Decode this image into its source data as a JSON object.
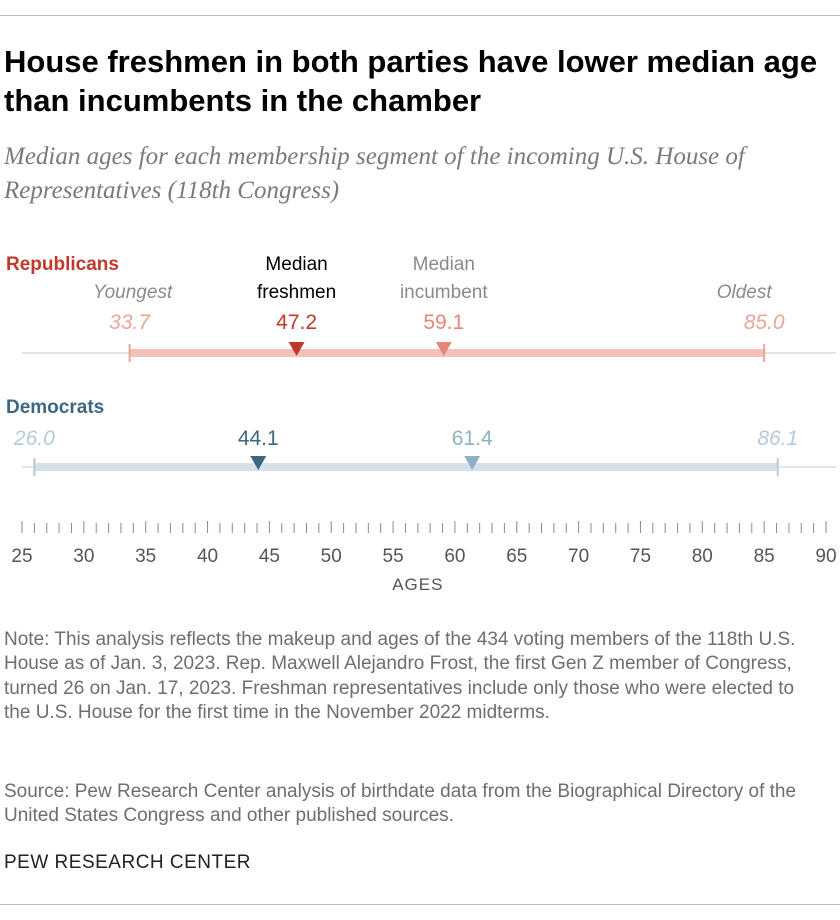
{
  "title": "House freshmen in both parties have lower median age than incumbents in the chamber",
  "subtitle": "Median ages for each membership segment of the incoming U.S. House of Representatives (118th Congress)",
  "note": "Note: This analysis reflects the makeup and ages of the 434 voting members of the 118th U.S. House as of Jan. 3, 2023. Rep. Maxwell Alejandro Frost, the first Gen Z member of Congress, turned 26 on Jan. 17, 2023. Freshman representatives include only those who were elected to the U.S. House for the first time in the November 2022 midterms.",
  "source": "Source: Pew Research Center analysis of birthdate data from the Biographical Directory of the United States Congress and other published sources.",
  "brand": "PEW RESEARCH CENTER",
  "chart_data": {
    "type": "range-dot",
    "xlabel": "AGES",
    "xlim": [
      25,
      90
    ],
    "ticks": [
      25,
      30,
      35,
      40,
      45,
      50,
      55,
      60,
      65,
      70,
      75,
      80,
      85,
      90
    ],
    "labels": {
      "youngest": "Youngest",
      "median_freshmen": [
        "Median",
        "freshmen"
      ],
      "median_incumbent": [
        "Median",
        "incumbent"
      ],
      "oldest": "Oldest"
    },
    "series": [
      {
        "name": "Republicans",
        "youngest": 33.7,
        "youngest_label": "33.7",
        "median_freshmen": 47.2,
        "median_freshmen_label": "47.2",
        "median_incumbent": 59.1,
        "median_incumbent_label": "59.1",
        "oldest": 85.0,
        "oldest_label": "85.0",
        "colors": {
          "name": "#c0392b",
          "range": "#f3c1b8",
          "endpoint": "#e8a598",
          "freshmen": "#c0392b",
          "incumbent": "#e8857a"
        }
      },
      {
        "name": "Democrats",
        "youngest": 26.0,
        "youngest_label": "26.0",
        "median_freshmen": 44.1,
        "median_freshmen_label": "44.1",
        "median_incumbent": 61.4,
        "median_incumbent_label": "61.4",
        "oldest": 86.1,
        "oldest_label": "86.1",
        "colors": {
          "name": "#3e6783",
          "range": "#d6e2ea",
          "endpoint": "#b5cbd9",
          "freshmen": "#3e6783",
          "incumbent": "#8fb0c6"
        }
      }
    ]
  }
}
